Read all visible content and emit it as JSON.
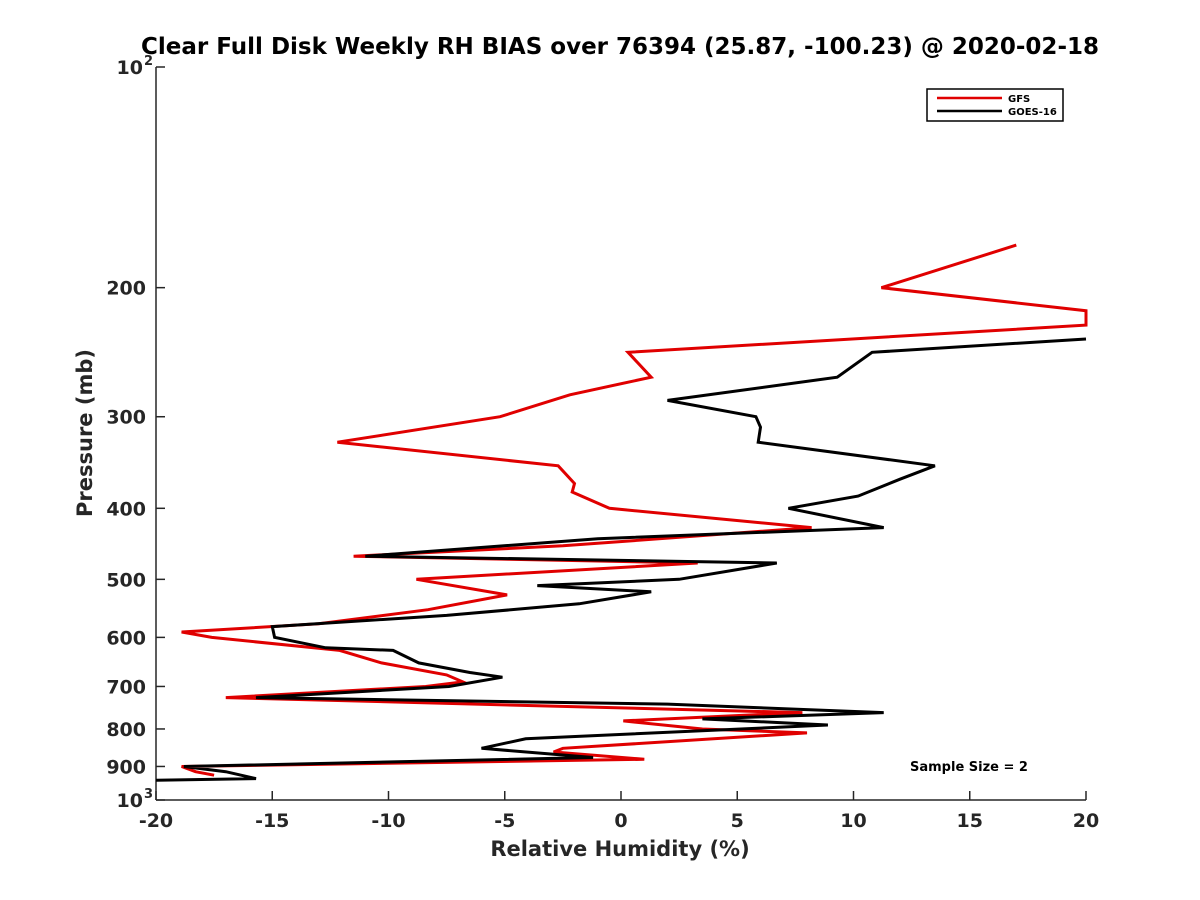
{
  "chart_data": {
    "type": "line",
    "title": "Clear Full Disk Weekly RH BIAS over 76394 (25.87, -100.23) @ 2020-02-18",
    "xlabel": "Relative Humidity (%)",
    "ylabel": "Pressure (mb)",
    "xlim": [
      -20,
      20
    ],
    "ylim": [
      100,
      1000
    ],
    "y_scale": "log",
    "y_reversed": true,
    "grid": false,
    "legend_position": "top-right",
    "x_ticks": [
      -20,
      -15,
      -10,
      -5,
      0,
      5,
      10,
      15,
      20
    ],
    "x_tick_labels": [
      "-20",
      "-15",
      "-10",
      "-5",
      "0",
      "5",
      "10",
      "15",
      "20"
    ],
    "y_ticks": [
      {
        "value": 100,
        "base": "10",
        "exp": "2",
        "label": ""
      },
      {
        "value": 200,
        "label": "200"
      },
      {
        "value": 300,
        "label": "300"
      },
      {
        "value": 400,
        "label": "400"
      },
      {
        "value": 500,
        "label": "500"
      },
      {
        "value": 600,
        "label": "600"
      },
      {
        "value": 700,
        "label": "700"
      },
      {
        "value": 800,
        "label": "800"
      },
      {
        "value": 900,
        "label": "900"
      },
      {
        "value": 1000,
        "base": "10",
        "exp": "3",
        "label": ""
      }
    ],
    "series": [
      {
        "name": "GFS",
        "color": "#e00000",
        "points": [
          {
            "x": 17.0,
            "y": 175
          },
          {
            "x": 11.2,
            "y": 200
          },
          {
            "x": 20.0,
            "y": 215
          },
          {
            "x": 20.0,
            "y": 225
          },
          {
            "x": 0.3,
            "y": 245
          },
          {
            "x": 1.3,
            "y": 265
          },
          {
            "x": -2.2,
            "y": 280
          },
          {
            "x": -5.2,
            "y": 300
          },
          {
            "x": -12.2,
            "y": 325
          },
          {
            "x": -2.7,
            "y": 350
          },
          {
            "x": -2.0,
            "y": 370
          },
          {
            "x": -2.1,
            "y": 380
          },
          {
            "x": -0.5,
            "y": 400
          },
          {
            "x": 8.2,
            "y": 425
          },
          {
            "x": -2.5,
            "y": 450
          },
          {
            "x": -11.5,
            "y": 465
          },
          {
            "x": 3.3,
            "y": 475
          },
          {
            "x": -8.8,
            "y": 500
          },
          {
            "x": -4.9,
            "y": 525
          },
          {
            "x": -8.3,
            "y": 550
          },
          {
            "x": -13.0,
            "y": 575
          },
          {
            "x": -18.9,
            "y": 590
          },
          {
            "x": -17.6,
            "y": 600
          },
          {
            "x": -12.1,
            "y": 625
          },
          {
            "x": -10.3,
            "y": 650
          },
          {
            "x": -7.5,
            "y": 675
          },
          {
            "x": -6.8,
            "y": 690
          },
          {
            "x": -8.4,
            "y": 700
          },
          {
            "x": -17.0,
            "y": 725
          },
          {
            "x": 7.8,
            "y": 760
          },
          {
            "x": 0.1,
            "y": 780
          },
          {
            "x": 3.5,
            "y": 800
          },
          {
            "x": 8.0,
            "y": 810
          },
          {
            "x": -2.5,
            "y": 850
          },
          {
            "x": -2.9,
            "y": 860
          },
          {
            "x": 1.0,
            "y": 880
          },
          {
            "x": -18.9,
            "y": 900
          },
          {
            "x": -18.3,
            "y": 915
          },
          {
            "x": -17.5,
            "y": 925
          }
        ]
      },
      {
        "name": "GOES-16",
        "color": "#000000",
        "points": [
          {
            "x": 20.0,
            "y": 235
          },
          {
            "x": 10.8,
            "y": 245
          },
          {
            "x": 9.3,
            "y": 265
          },
          {
            "x": 2.0,
            "y": 285
          },
          {
            "x": 5.8,
            "y": 300
          },
          {
            "x": 6.0,
            "y": 310
          },
          {
            "x": 5.9,
            "y": 325
          },
          {
            "x": 13.5,
            "y": 350
          },
          {
            "x": 12.0,
            "y": 365
          },
          {
            "x": 10.2,
            "y": 385
          },
          {
            "x": 7.2,
            "y": 400
          },
          {
            "x": 11.3,
            "y": 425
          },
          {
            "x": -1.0,
            "y": 440
          },
          {
            "x": -11.0,
            "y": 465
          },
          {
            "x": 6.7,
            "y": 475
          },
          {
            "x": 2.5,
            "y": 500
          },
          {
            "x": -3.6,
            "y": 510
          },
          {
            "x": 1.3,
            "y": 520
          },
          {
            "x": -1.8,
            "y": 540
          },
          {
            "x": -7.5,
            "y": 560
          },
          {
            "x": -15.0,
            "y": 580
          },
          {
            "x": -14.9,
            "y": 600
          },
          {
            "x": -12.7,
            "y": 620
          },
          {
            "x": -9.8,
            "y": 625
          },
          {
            "x": -8.7,
            "y": 650
          },
          {
            "x": -6.5,
            "y": 670
          },
          {
            "x": -5.1,
            "y": 680
          },
          {
            "x": -7.4,
            "y": 700
          },
          {
            "x": -15.7,
            "y": 725
          },
          {
            "x": 2.0,
            "y": 740
          },
          {
            "x": 11.3,
            "y": 760
          },
          {
            "x": 3.5,
            "y": 775
          },
          {
            "x": 8.9,
            "y": 790
          },
          {
            "x": -4.1,
            "y": 825
          },
          {
            "x": -6.0,
            "y": 850
          },
          {
            "x": -1.2,
            "y": 875
          },
          {
            "x": -18.8,
            "y": 900
          },
          {
            "x": -17.0,
            "y": 915
          },
          {
            "x": -15.7,
            "y": 935
          },
          {
            "x": -20.0,
            "y": 940
          }
        ]
      }
    ],
    "annotation": "Sample Size = 2"
  }
}
